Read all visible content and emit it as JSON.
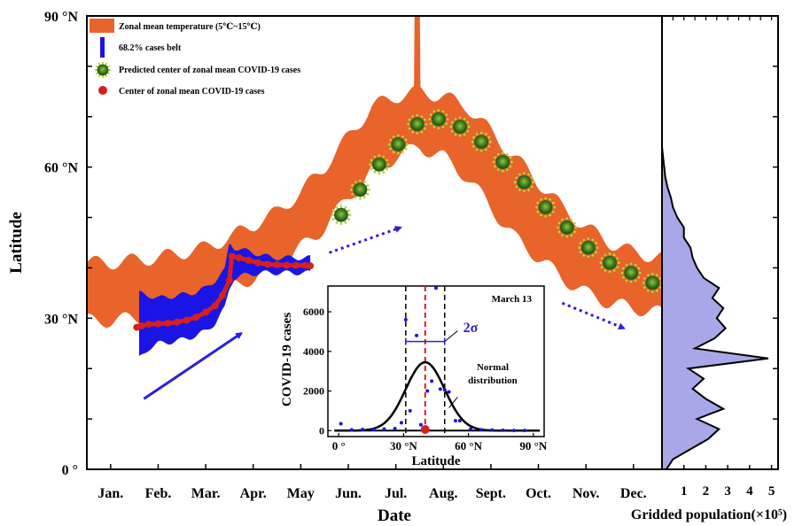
{
  "chart_data": [
    {
      "type": "area",
      "xlabel": "Date",
      "ylabel": "Latitude",
      "months": [
        "Jan.",
        "Feb.",
        "Mar.",
        "Apr.",
        "May",
        "Jun.",
        "Jul.",
        "Aug.",
        "Sept.",
        "Oct.",
        "Nov.",
        "Dec."
      ],
      "yticks": [
        "0 °",
        "30 °N",
        "60 °N",
        "90 °N"
      ],
      "ylim": [
        0,
        90
      ],
      "xlim_months": [
        0,
        12.1
      ],
      "legend_position": "top-left",
      "legend": [
        {
          "label": "Zonal mean temperature (5℃~15℃)",
          "color": "#e8642a"
        },
        {
          "label": "68.2% cases belt",
          "color": "#1a14e6"
        },
        {
          "label": "Predicted center of zonal mean COVID-19 cases",
          "color": "#3f7a1e"
        },
        {
          "label": "Center of zonal mean COVID-19 cases",
          "color": "#d42020"
        }
      ],
      "temperature_band": {
        "x": [
          0,
          0.5,
          1,
          1.5,
          2,
          2.5,
          3,
          3.5,
          4,
          4.5,
          5,
          5.5,
          6,
          6.5,
          7,
          7.5,
          8,
          8.5,
          9,
          9.5,
          10,
          10.5,
          11,
          11.5,
          12.1
        ],
        "upper": [
          41,
          41,
          41.5,
          42,
          43,
          44,
          46,
          48.5,
          51,
          55,
          60,
          66,
          72,
          74,
          75,
          74,
          72,
          67,
          62,
          57,
          52,
          48,
          45,
          43,
          42
        ],
        "lower": [
          29.5,
          29.5,
          30,
          30.5,
          32,
          33,
          36,
          38,
          40,
          44,
          48,
          54,
          59,
          62,
          64,
          62,
          58,
          52,
          46,
          42,
          38,
          35,
          33,
          32,
          31
        ]
      },
      "cases_belt": {
        "x": [
          1.1,
          1.3,
          1.5,
          1.7,
          1.9,
          2.1,
          2.3,
          2.5,
          2.7,
          2.9,
          3.0,
          3.1,
          3.3,
          3.5,
          3.7,
          3.9,
          4.1,
          4.3,
          4.5,
          4.7
        ],
        "upper": [
          35,
          34.5,
          34,
          34.2,
          34.5,
          34.8,
          35.2,
          36,
          37.5,
          39.5,
          45,
          44,
          43.5,
          43,
          42.5,
          42,
          42,
          42,
          42,
          42
        ],
        "lower": [
          22,
          24,
          25,
          25.2,
          25.5,
          26,
          26.5,
          27.5,
          29,
          32,
          36,
          38,
          38.5,
          38.8,
          39,
          39,
          39,
          39,
          39,
          39
        ]
      },
      "observed_center": {
        "x": [
          1.05,
          1.15,
          1.3,
          1.5,
          1.7,
          1.9,
          2.1,
          2.3,
          2.5,
          2.7,
          2.85,
          3.0,
          3.05,
          3.2,
          3.4,
          3.6,
          3.8,
          4.0,
          4.2,
          4.4,
          4.6,
          4.7
        ],
        "y": [
          28.2,
          28.5,
          28.8,
          28.9,
          29,
          29.2,
          29.6,
          30.2,
          31.2,
          32.5,
          34.5,
          37.5,
          42.3,
          42,
          41.5,
          41,
          40.7,
          40.6,
          40.5,
          40.5,
          40.5,
          40.4
        ]
      },
      "predicted_center": {
        "x": [
          5.35,
          5.75,
          6.15,
          6.55,
          6.95,
          7.4,
          7.85,
          8.3,
          8.75,
          9.2,
          9.65,
          10.1,
          10.55,
          11.0,
          11.45,
          11.9
        ],
        "y": [
          50.5,
          55.5,
          60.5,
          64.5,
          68.5,
          69.5,
          68,
          65,
          61,
          57,
          52,
          48,
          44,
          41,
          39,
          37
        ]
      },
      "arrows": [
        {
          "from": [
            1.2,
            14
          ],
          "to": [
            3.25,
            27
          ],
          "style": "solid"
        },
        {
          "from": [
            5.1,
            43
          ],
          "to": [
            6.6,
            48
          ],
          "style": "dotted"
        },
        {
          "from": [
            10.0,
            33
          ],
          "to": [
            11.3,
            28
          ],
          "style": "dotted"
        }
      ]
    },
    {
      "type": "area",
      "xlabel": "Gridded population(×10⁵)",
      "xticks": [
        "1",
        "2",
        "3",
        "4",
        "5"
      ],
      "xlim": [
        0,
        5.3
      ],
      "ylim": [
        0,
        90
      ],
      "fill_color": "#a8a8e8",
      "profile": {
        "lat": [
          0,
          2,
          4,
          6,
          8,
          10,
          12,
          14,
          16,
          18,
          20,
          22,
          24,
          26,
          28,
          30,
          32,
          34,
          36,
          38,
          40,
          42,
          44,
          46,
          48,
          50,
          52,
          54,
          56,
          58,
          60,
          62,
          64
        ],
        "pop": [
          0.2,
          0.5,
          1.3,
          2.1,
          2.6,
          1.6,
          2.8,
          2.0,
          1.4,
          1.9,
          1.2,
          4.85,
          1.5,
          2.4,
          2.9,
          2.5,
          2.8,
          2.3,
          2.6,
          1.9,
          1.6,
          1.4,
          1.3,
          1.0,
          1.0,
          0.7,
          0.5,
          0.4,
          0.25,
          0.15,
          0.1,
          0.05,
          0.0
        ]
      }
    },
    {
      "type": "scatter",
      "title": "March 13",
      "xlabel": "Latitude",
      "ylabel": "COVID-19 cases",
      "xticks": [
        "0 °",
        "30 °N",
        "60 °N",
        "90 °N"
      ],
      "yticks": [
        "0",
        "2000",
        "4000",
        "6000"
      ],
      "xlim": [
        -5,
        95
      ],
      "ylim": [
        -300,
        7300
      ],
      "points": {
        "x": [
          1,
          6,
          11,
          16,
          21,
          26,
          29,
          31,
          33,
          36,
          38,
          41,
          43,
          45,
          47,
          49,
          51,
          54,
          56,
          61,
          66,
          71,
          76,
          81,
          86
        ],
        "y": [
          350,
          40,
          60,
          50,
          80,
          100,
          400,
          5600,
          1000,
          4800,
          300,
          2000,
          2500,
          7200,
          2100,
          2050,
          1950,
          500,
          500,
          80,
          40,
          30,
          20,
          10,
          5
        ]
      },
      "normal_curve": {
        "mean": 40,
        "sigma": 9,
        "amplitude": 3450
      },
      "mean_marker": 40,
      "sigma_bounds": [
        31,
        49
      ],
      "annotations": {
        "sigma": "2σ",
        "curve": [
          "Normal",
          "distribution"
        ]
      }
    }
  ]
}
